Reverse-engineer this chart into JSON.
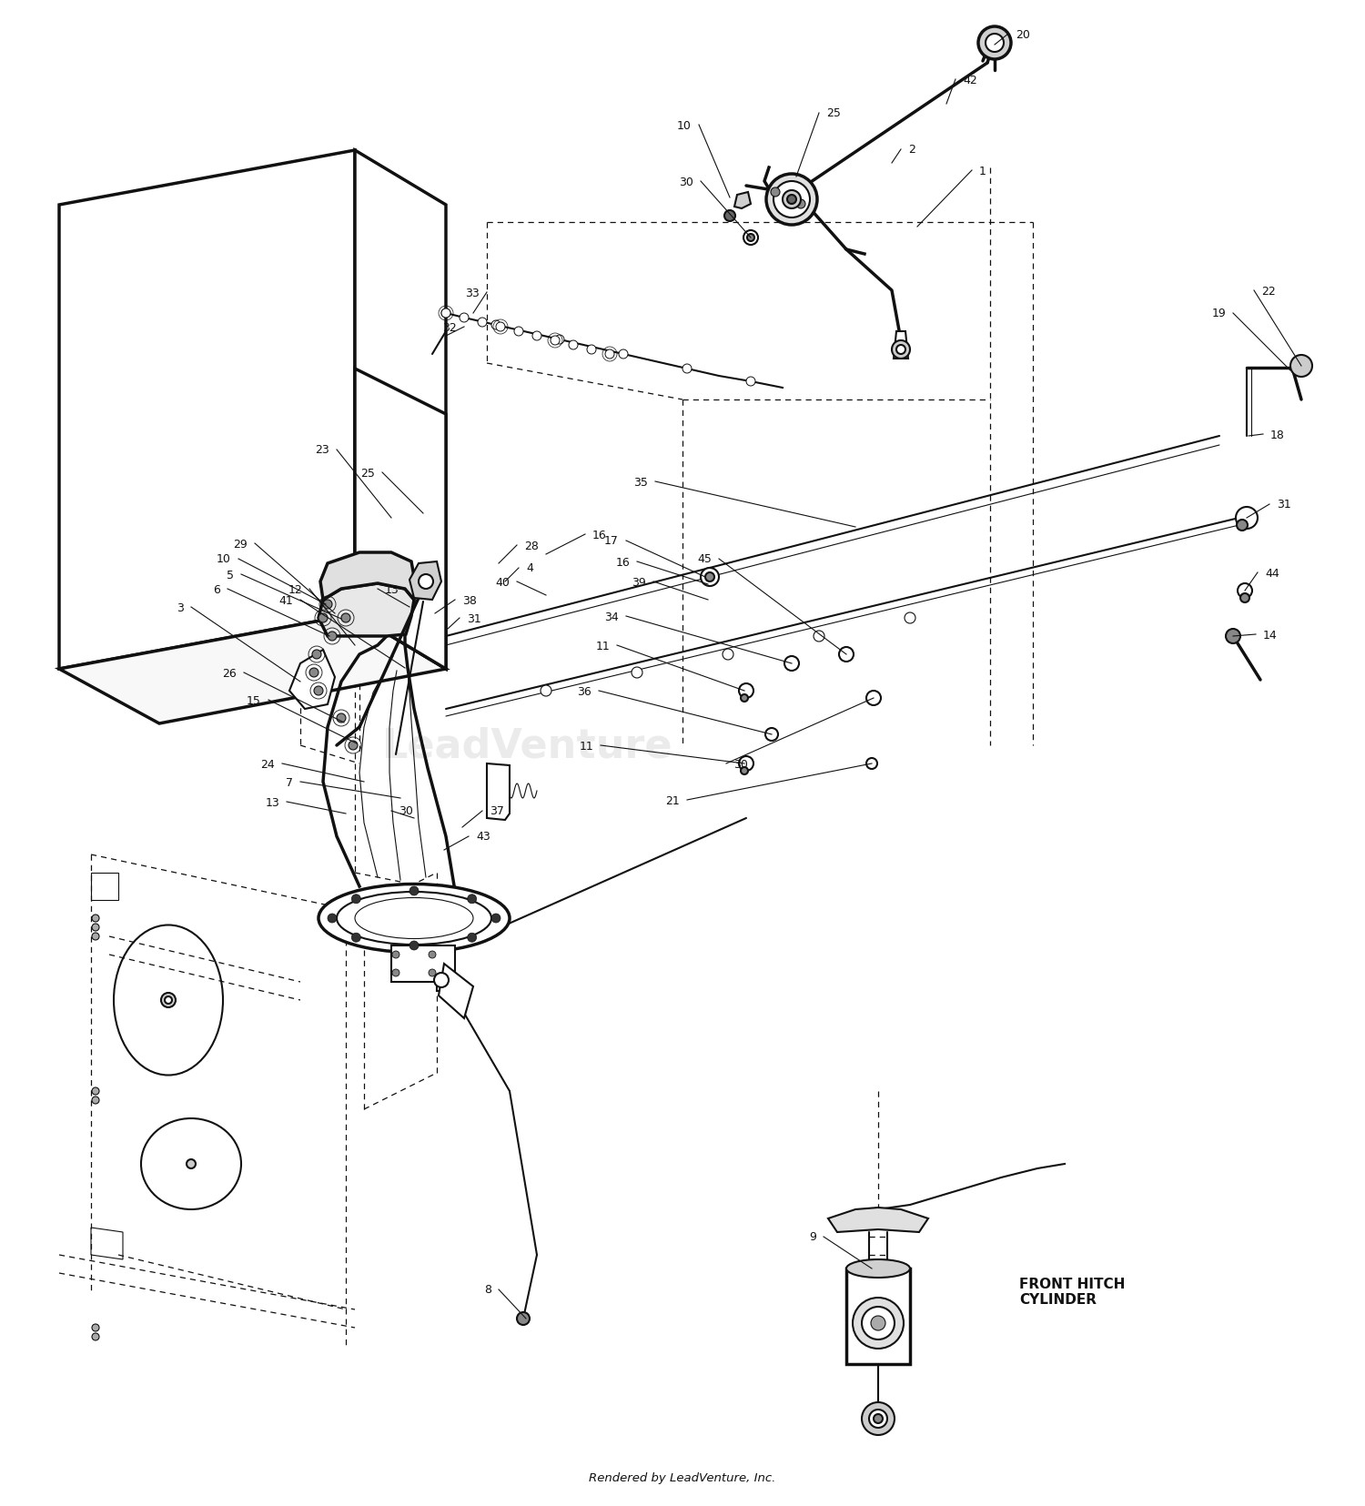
{
  "fig_width": 15.0,
  "fig_height": 16.56,
  "background_color": "#ffffff",
  "line_color": "#111111",
  "footer": "Rendered by LeadVenture, Inc.",
  "watermark": "LeadVenture",
  "front_hitch_label": "FRONT HITCH\nCYLINDER"
}
